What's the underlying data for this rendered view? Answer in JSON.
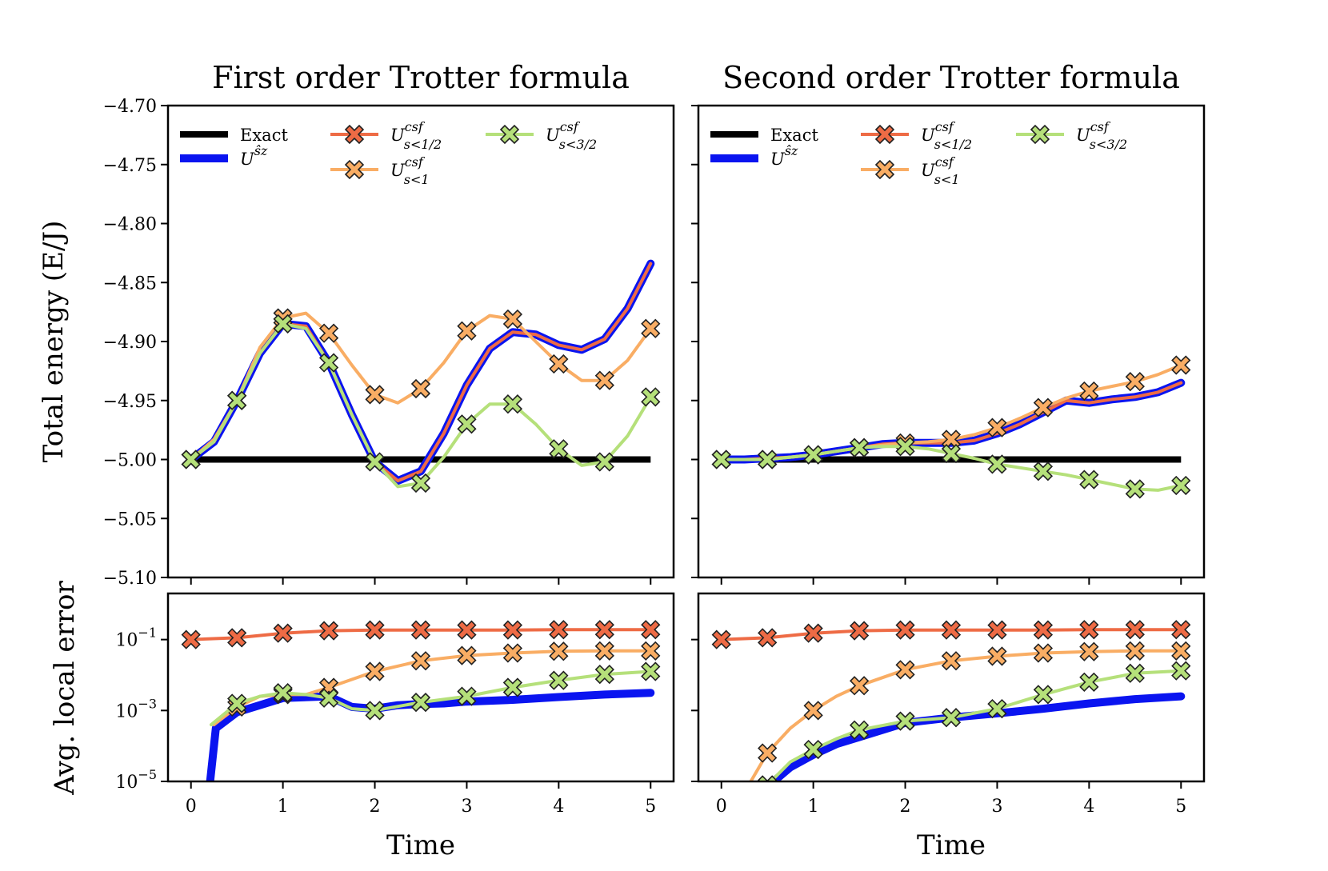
{
  "colors": {
    "exact": "#000000",
    "usz": "#0a14f0",
    "half": "#ee6b45",
    "one": "#f9ad64",
    "threehalf": "#b5e07a"
  },
  "shared": {
    "xlabel": "Time",
    "ylabel_top": "Total energy (E/J)",
    "ylabel_bottom": "Avg. local error",
    "xticks": [
      "0",
      "1",
      "2",
      "3",
      "4",
      "5"
    ],
    "yticks_top": [
      "−4.70",
      "−4.75",
      "−4.80",
      "−4.85",
      "−4.90",
      "−4.95",
      "−5.00",
      "−5.05",
      "−5.10"
    ],
    "yticks_bottom_base": [
      "10",
      "10",
      "10"
    ],
    "yticks_bottom_exp": [
      "−1",
      "−3",
      "−5"
    ]
  },
  "legend": {
    "exact": "Exact",
    "usz_base": "U",
    "usz_sup": "ŝz",
    "csf_base": "U",
    "csf_sup": "csf",
    "half_sub": "s<1/2",
    "one_sub": "s<1",
    "threehalf_sub": "s<3/2"
  },
  "chart_data": [
    {
      "type": "line",
      "title": "First order Trotter formula",
      "xlabel": "Time",
      "ylabel": "Total energy (E/J)",
      "xlim": [
        -0.25,
        5.25
      ],
      "ylim": [
        -5.1,
        -4.7
      ],
      "series": [
        {
          "name": "Exact",
          "x": [
            0,
            5
          ],
          "y": [
            -5.0,
            -5.0
          ]
        },
        {
          "name": "U^{ŝz}",
          "x": [
            0,
            0.25,
            0.5,
            0.75,
            1,
            1.25,
            1.5,
            1.75,
            2,
            2.25,
            2.5,
            2.75,
            3,
            3.25,
            3.5,
            3.75,
            4,
            4.25,
            4.5,
            4.75,
            5
          ],
          "y": [
            -5.0,
            -4.985,
            -4.95,
            -4.91,
            -4.885,
            -4.887,
            -4.918,
            -4.962,
            -5.002,
            -5.018,
            -5.01,
            -4.978,
            -4.937,
            -4.906,
            -4.892,
            -4.894,
            -4.903,
            -4.907,
            -4.898,
            -4.872,
            -4.834
          ]
        },
        {
          "name": "U^{csf}_{s<1/2}",
          "x": [
            0,
            0.25,
            0.5,
            0.75,
            1,
            1.25,
            1.5,
            1.75,
            2,
            2.25,
            2.5,
            2.75,
            3,
            3.25,
            3.5,
            3.75,
            4,
            4.25,
            4.5,
            4.75,
            5
          ],
          "y": [
            -5.0,
            -4.985,
            -4.95,
            -4.91,
            -4.885,
            -4.887,
            -4.918,
            -4.962,
            -5.002,
            -5.018,
            -5.01,
            -4.978,
            -4.937,
            -4.906,
            -4.892,
            -4.894,
            -4.903,
            -4.907,
            -4.898,
            -4.872,
            -4.834
          ],
          "markers": false
        },
        {
          "name": "U^{csf}_{s<1}",
          "x": [
            0,
            0.25,
            0.5,
            0.75,
            1,
            1.25,
            1.5,
            1.75,
            2,
            2.25,
            2.5,
            2.75,
            3,
            3.25,
            3.5,
            3.75,
            4,
            4.25,
            4.5,
            4.75,
            5
          ],
          "y": [
            -5.0,
            -4.983,
            -4.95,
            -4.905,
            -4.88,
            -4.876,
            -4.893,
            -4.92,
            -4.945,
            -4.952,
            -4.94,
            -4.918,
            -4.891,
            -4.878,
            -4.881,
            -4.9,
            -4.919,
            -4.933,
            -4.933,
            -4.916,
            -4.889
          ],
          "markers": true
        },
        {
          "name": "U^{csf}_{s<3/2}",
          "x": [
            0,
            0.25,
            0.5,
            0.75,
            1,
            1.25,
            1.5,
            1.75,
            2,
            2.25,
            2.5,
            2.75,
            3,
            3.25,
            3.5,
            3.75,
            4,
            4.25,
            4.5,
            4.75,
            5
          ],
          "y": [
            -5.0,
            -4.985,
            -4.95,
            -4.91,
            -4.885,
            -4.889,
            -4.918,
            -4.962,
            -5.002,
            -5.023,
            -5.02,
            -4.998,
            -4.97,
            -4.953,
            -4.953,
            -4.97,
            -4.991,
            -5.005,
            -5.002,
            -4.98,
            -4.947
          ],
          "markers": true
        }
      ]
    },
    {
      "type": "line",
      "title": "Second order Trotter formula",
      "xlabel": "Time",
      "xlim": [
        -0.25,
        5.25
      ],
      "ylim": [
        -5.1,
        -4.7
      ],
      "series": [
        {
          "name": "Exact",
          "x": [
            0,
            5
          ],
          "y": [
            -5.0,
            -5.0
          ]
        },
        {
          "name": "U^{ŝz}",
          "x": [
            0,
            0.25,
            0.5,
            0.75,
            1,
            1.25,
            1.5,
            1.75,
            2,
            2.25,
            2.5,
            2.75,
            3,
            3.25,
            3.5,
            3.75,
            4,
            4.25,
            4.5,
            4.75,
            5
          ],
          "y": [
            -5.0,
            -5.0,
            -4.999,
            -4.998,
            -4.996,
            -4.993,
            -4.99,
            -4.987,
            -4.986,
            -4.986,
            -4.986,
            -4.984,
            -4.978,
            -4.97,
            -4.96,
            -4.95,
            -4.952,
            -4.949,
            -4.947,
            -4.943,
            -4.935
          ]
        },
        {
          "name": "U^{csf}_{s<1/2}",
          "x": [
            0,
            0.25,
            0.5,
            0.75,
            1,
            1.25,
            1.5,
            1.75,
            2,
            2.25,
            2.5,
            2.75,
            3,
            3.25,
            3.5,
            3.75,
            4,
            4.25,
            4.5,
            4.75,
            5
          ],
          "y": [
            -5.0,
            -5.0,
            -4.999,
            -4.998,
            -4.996,
            -4.993,
            -4.99,
            -4.987,
            -4.986,
            -4.986,
            -4.986,
            -4.984,
            -4.978,
            -4.97,
            -4.96,
            -4.95,
            -4.952,
            -4.949,
            -4.947,
            -4.943,
            -4.935
          ],
          "markers": false
        },
        {
          "name": "U^{csf}_{s<1}",
          "x": [
            0,
            0.25,
            0.5,
            0.75,
            1,
            1.25,
            1.5,
            1.75,
            2,
            2.25,
            2.5,
            2.75,
            3,
            3.25,
            3.5,
            3.75,
            4,
            4.25,
            4.5,
            4.75,
            5
          ],
          "y": [
            -5.0,
            -5.0,
            -5.0,
            -4.998,
            -4.996,
            -4.993,
            -4.99,
            -4.988,
            -4.986,
            -4.985,
            -4.983,
            -4.979,
            -4.973,
            -4.965,
            -4.956,
            -4.948,
            -4.942,
            -4.938,
            -4.934,
            -4.928,
            -4.92
          ],
          "markers": true
        },
        {
          "name": "U^{csf}_{s<3/2}",
          "x": [
            0,
            0.25,
            0.5,
            0.75,
            1,
            1.25,
            1.5,
            1.75,
            2,
            2.25,
            2.5,
            2.75,
            3,
            3.25,
            3.5,
            3.75,
            4,
            4.25,
            4.5,
            4.75,
            5
          ],
          "y": [
            -5.0,
            -5.0,
            -5.0,
            -4.998,
            -4.996,
            -4.993,
            -4.99,
            -4.989,
            -4.989,
            -4.991,
            -4.995,
            -4.999,
            -5.004,
            -5.007,
            -5.01,
            -5.013,
            -5.017,
            -5.021,
            -5.025,
            -5.026,
            -5.022
          ],
          "markers": true
        }
      ]
    },
    {
      "type": "line",
      "yscale": "log",
      "xlabel": "Time",
      "ylabel": "Avg. local error",
      "xlim": [
        -0.25,
        5.25
      ],
      "ylim_log10": [
        -5,
        0.3
      ],
      "series": [
        {
          "name": "U^{ŝz}",
          "x": [
            0.2,
            0.27,
            0.5,
            1,
            1.5,
            1.75,
            2,
            2.25,
            2.5,
            2.75,
            3,
            3.5,
            4,
            4.5,
            5
          ],
          "log10y": [
            -5.2,
            -3.5,
            -3.05,
            -2.65,
            -2.6,
            -2.9,
            -2.95,
            -2.85,
            -2.82,
            -2.8,
            -2.75,
            -2.7,
            -2.62,
            -2.55,
            -2.5
          ]
        },
        {
          "name": "U^{csf}_{s<1/2}",
          "x": [
            0,
            0.5,
            1,
            1.5,
            2,
            2.5,
            3,
            3.5,
            4,
            4.5,
            5
          ],
          "log10y": [
            -1.0,
            -0.95,
            -0.82,
            -0.75,
            -0.73,
            -0.73,
            -0.73,
            -0.73,
            -0.72,
            -0.72,
            -0.72
          ],
          "markers": true
        },
        {
          "name": "U^{csf}_{s<1}",
          "x": [
            0.25,
            0.5,
            0.75,
            1,
            1.25,
            1.5,
            2,
            2.5,
            3,
            3.5,
            4,
            4.5,
            5
          ],
          "log10y": [
            -3.4,
            -2.9,
            -2.6,
            -2.55,
            -2.55,
            -2.35,
            -1.9,
            -1.6,
            -1.45,
            -1.38,
            -1.33,
            -1.32,
            -1.32
          ],
          "markers": true
        },
        {
          "name": "U^{csf}_{s<3/2}",
          "x": [
            0.22,
            0.5,
            0.75,
            1,
            1.25,
            1.5,
            1.75,
            2,
            2.5,
            3,
            3.5,
            4,
            4.5,
            5
          ],
          "log10y": [
            -3.4,
            -2.8,
            -2.6,
            -2.5,
            -2.55,
            -2.65,
            -2.95,
            -3.0,
            -2.77,
            -2.6,
            -2.35,
            -2.15,
            -1.98,
            -1.9
          ],
          "markers": true
        }
      ]
    },
    {
      "type": "line",
      "yscale": "log",
      "xlabel": "Time",
      "xlim": [
        -0.25,
        5.25
      ],
      "ylim_log10": [
        -5,
        0.3
      ],
      "series": [
        {
          "name": "U^{ŝz}",
          "x": [
            0.42,
            0.5,
            0.75,
            1,
            1.25,
            1.5,
            2,
            2.5,
            3,
            3.5,
            4,
            4.5,
            5
          ],
          "log10y": [
            -5.3,
            -5.15,
            -4.6,
            -4.25,
            -3.95,
            -3.75,
            -3.35,
            -3.2,
            -3.08,
            -2.95,
            -2.8,
            -2.68,
            -2.6
          ]
        },
        {
          "name": "U^{csf}_{s<1/2}",
          "x": [
            0,
            0.5,
            1,
            1.5,
            2,
            2.5,
            3,
            3.5,
            4,
            4.5,
            5
          ],
          "log10y": [
            -1.0,
            -0.95,
            -0.82,
            -0.75,
            -0.73,
            -0.73,
            -0.73,
            -0.73,
            -0.72,
            -0.72,
            -0.72
          ],
          "markers": true
        },
        {
          "name": "U^{csf}_{s<1}",
          "x": [
            0.32,
            0.5,
            0.75,
            1,
            1.25,
            1.5,
            2,
            2.5,
            3,
            3.5,
            4,
            4.5,
            5
          ],
          "log10y": [
            -5.0,
            -4.2,
            -3.5,
            -3.0,
            -2.6,
            -2.3,
            -1.85,
            -1.6,
            -1.47,
            -1.38,
            -1.34,
            -1.32,
            -1.32
          ],
          "markers": true
        },
        {
          "name": "U^{csf}_{s<3/2}",
          "x": [
            0.46,
            0.5,
            0.75,
            1,
            1.25,
            1.5,
            2,
            2.5,
            3,
            3.5,
            4,
            4.5,
            5
          ],
          "log10y": [
            -5.2,
            -5.1,
            -4.45,
            -4.1,
            -3.8,
            -3.55,
            -3.3,
            -3.2,
            -2.95,
            -2.55,
            -2.2,
            -1.95,
            -1.88
          ],
          "markers": true
        }
      ]
    }
  ]
}
